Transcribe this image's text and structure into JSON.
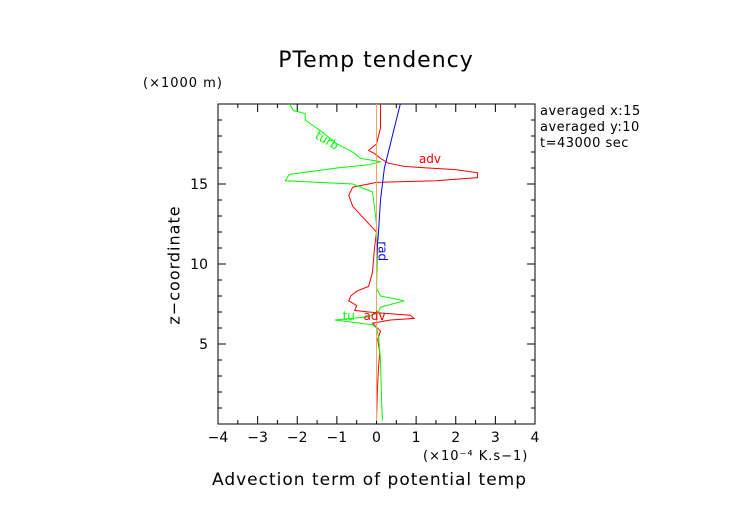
{
  "chart_data": {
    "type": "line",
    "title": "PTemp tendency",
    "xlabel": "Advection term of potential temp",
    "x_unit": "(×10⁻⁴ K.s−1)",
    "ylabel": "z−coordinate",
    "y_unit": "(×1000 m)",
    "xlim": [
      -4,
      4
    ],
    "ylim": [
      0,
      20
    ],
    "x_ticks": [
      "−4",
      "−3",
      "−2",
      "−1",
      "0",
      "1",
      "2",
      "3",
      "4"
    ],
    "y_ticks": [
      "5",
      "10",
      "15"
    ],
    "info_lines": [
      "averaged  x:15",
      "averaged  y:10",
      "t=43000 sec"
    ],
    "grid": false,
    "series": [
      {
        "name": "adv",
        "color": "#ff0000",
        "points": [
          [
            0,
            0.2
          ],
          [
            0.02,
            2
          ],
          [
            0.05,
            3.5
          ],
          [
            0.08,
            4.5
          ],
          [
            0.03,
            5.3
          ],
          [
            0.1,
            5.8
          ],
          [
            -0.1,
            6.3
          ],
          [
            0.35,
            6.5
          ],
          [
            0.95,
            6.6
          ],
          [
            0.85,
            6.8
          ],
          [
            0.3,
            6.9
          ],
          [
            -0.2,
            7.0
          ],
          [
            -0.55,
            7.1
          ],
          [
            -0.5,
            7.4
          ],
          [
            -0.7,
            7.7
          ],
          [
            -0.65,
            8.0
          ],
          [
            -0.5,
            8.3
          ],
          [
            -0.2,
            8.6
          ],
          [
            -0.1,
            9.5
          ],
          [
            -0.05,
            11
          ],
          [
            0,
            12
          ],
          [
            -0.3,
            12.8
          ],
          [
            -0.6,
            13.6
          ],
          [
            -0.7,
            14.3
          ],
          [
            -0.6,
            14.8
          ],
          [
            0,
            15.1
          ],
          [
            1.5,
            15.2
          ],
          [
            2.55,
            15.4
          ],
          [
            2.55,
            15.7
          ],
          [
            2.0,
            15.9
          ],
          [
            1.3,
            16.0
          ],
          [
            0.7,
            16.1
          ],
          [
            0.3,
            16.3
          ],
          [
            0.1,
            16.6
          ],
          [
            -0.05,
            16.9
          ],
          [
            -0.2,
            17.1
          ],
          [
            0,
            17.5
          ],
          [
            0.1,
            18.5
          ],
          [
            0.1,
            20
          ]
        ]
      },
      {
        "name": "turb",
        "color": "#00ff00",
        "points": [
          [
            0.15,
            0.2
          ],
          [
            0.12,
            2
          ],
          [
            0.1,
            4
          ],
          [
            0.05,
            5.5
          ],
          [
            0.0,
            6.0
          ],
          [
            -0.1,
            6.2
          ],
          [
            -0.4,
            6.3
          ],
          [
            -1.05,
            6.5
          ],
          [
            -0.2,
            6.7
          ],
          [
            0.05,
            7.0
          ],
          [
            0.1,
            7.3
          ],
          [
            0.7,
            7.7
          ],
          [
            0.1,
            8.0
          ],
          [
            0,
            8.5
          ],
          [
            0.02,
            10
          ],
          [
            0.02,
            11
          ],
          [
            0,
            12.5
          ],
          [
            -0.05,
            13.5
          ],
          [
            -0.1,
            14.5
          ],
          [
            -0.6,
            15.0
          ],
          [
            -2.3,
            15.2
          ],
          [
            -2.2,
            15.6
          ],
          [
            -1.0,
            16.0
          ],
          [
            -0.2,
            16.2
          ],
          [
            0.1,
            16.4
          ],
          [
            -0.4,
            16.6
          ],
          [
            -0.6,
            17.0
          ],
          [
            -1.0,
            17.5
          ],
          [
            -1.4,
            18.3
          ],
          [
            -1.8,
            19.0
          ],
          [
            -1.8,
            19.4
          ],
          [
            -2.1,
            19.6
          ],
          [
            -2.2,
            20
          ]
        ]
      },
      {
        "name": "rad",
        "color": "#0000ff",
        "points": [
          [
            0,
            0.2
          ],
          [
            0,
            4
          ],
          [
            0,
            8
          ],
          [
            0,
            10
          ],
          [
            0.02,
            11
          ],
          [
            0.05,
            12
          ],
          [
            0.1,
            14
          ],
          [
            0.2,
            16
          ],
          [
            0.3,
            17
          ],
          [
            0.45,
            18.5
          ],
          [
            0.6,
            20
          ]
        ]
      },
      {
        "name": "",
        "color": "#f4a460",
        "points": [
          [
            0,
            0.2
          ],
          [
            0,
            5
          ],
          [
            0,
            10
          ],
          [
            0,
            15
          ],
          [
            0,
            17
          ],
          [
            0,
            20
          ]
        ]
      }
    ],
    "labels": [
      {
        "text": "adv",
        "color": "#ff0000",
        "x": 1.35,
        "y": 16.3
      },
      {
        "text": "turb",
        "color": "#00ff00",
        "x": -1.3,
        "y": 17.5
      },
      {
        "text": "rad",
        "color": "#0000ff",
        "x": 0.05,
        "y": 10.8
      },
      {
        "text": "tu",
        "color": "#00ff00",
        "x": -0.7,
        "y": 6.5
      },
      {
        "text": "adv",
        "color": "#ff0000",
        "x": -0.05,
        "y": 6.5
      }
    ]
  }
}
